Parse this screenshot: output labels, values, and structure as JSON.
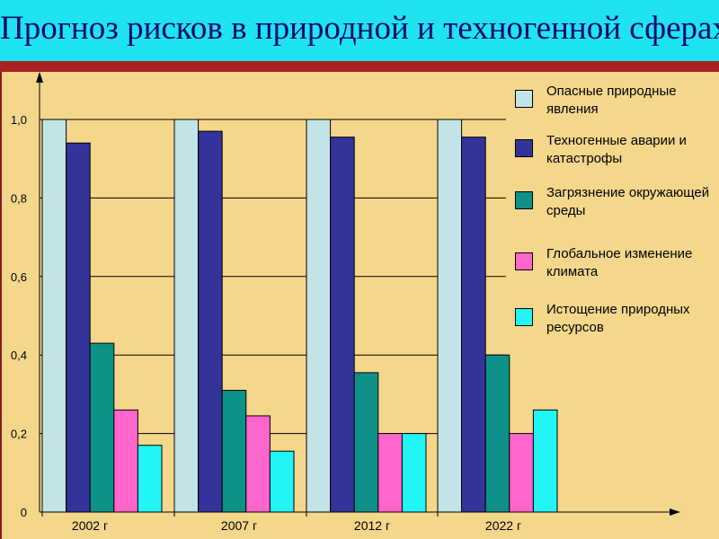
{
  "title": "Прогноз рисков в природной и техногенной сферах",
  "chart_data": {
    "type": "bar",
    "categories": [
      "2002 г",
      "2007 г",
      "2012 г",
      "2022 г"
    ],
    "series": [
      {
        "name": "Опасные природные явления",
        "color": "#c3e4e6",
        "values": [
          1.0,
          1.0,
          1.0,
          1.0
        ]
      },
      {
        "name": "Техногенные аварии и катастрофы",
        "color": "#333399",
        "values": [
          0.94,
          0.97,
          0.955,
          0.955
        ]
      },
      {
        "name": "Загрязнение окружающей среды",
        "color": "#0e9188",
        "values": [
          0.43,
          0.31,
          0.355,
          0.4
        ]
      },
      {
        "name": "Глобальное изменение климата",
        "color": "#ff66cc",
        "values": [
          0.26,
          0.245,
          0.2,
          0.2
        ]
      },
      {
        "name": "Истощение природных ресурсов",
        "color": "#22f5f5",
        "values": [
          0.17,
          0.155,
          0.2,
          0.26
        ]
      }
    ],
    "yticks": [
      "0",
      "0,2",
      "0,4",
      "0,6",
      "0,8",
      "1,0"
    ],
    "ylim": [
      0,
      1.0
    ],
    "grid": true,
    "legend_position": "right"
  }
}
